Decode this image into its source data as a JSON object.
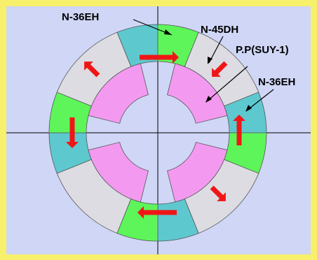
{
  "diagram": {
    "caption": "",
    "labels": {
      "top": "N-36EH",
      "upper_right": "N-45DH",
      "pole_piece": "P.P(SUY-1)",
      "right": "N-36EH"
    }
  },
  "colors": {
    "outer_frame": "#f7f06a",
    "background": "#cfd6f6",
    "magnet_green": "#5ef55a",
    "magnet_teal": "#5ec8cf",
    "magnet_gray": "#dcdce2",
    "pole_piece_pink": "#f39af0",
    "arrow_red": "#f01616"
  }
}
